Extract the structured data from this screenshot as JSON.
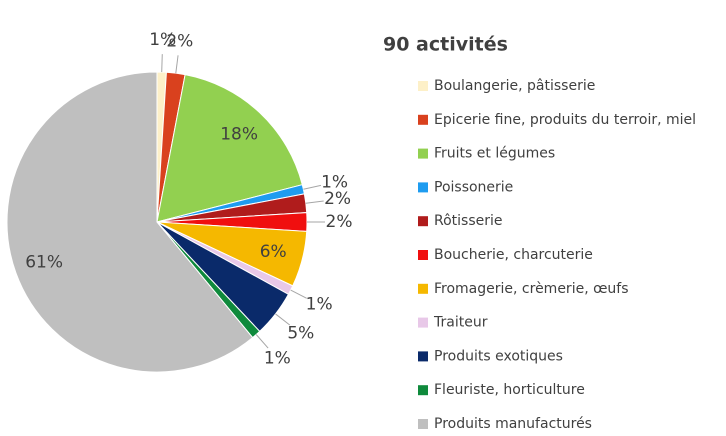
{
  "chart_data": {
    "type": "pie",
    "title": "90 activités",
    "categories": [
      "Boulangerie, pâtisserie",
      "Epicerie fine, produits du terroir, miel",
      "Fruits et légumes",
      "Poissonerie",
      "Rôtisserie",
      "Boucherie, charcuterie",
      "Fromagerie, crèmerie, œufs",
      "Traiteur",
      "Produits exotiques",
      "Fleuriste, horticulture",
      "Produits manufacturés"
    ],
    "values": [
      1,
      2,
      18,
      1,
      2,
      2,
      6,
      1,
      5,
      1,
      61
    ],
    "value_labels": [
      "1%",
      "2%",
      "18%",
      "1%",
      "2%",
      "2%",
      "6%",
      "1%",
      "5%",
      "1%",
      "61%"
    ],
    "colors": [
      "#fdf0c8",
      "#d9411e",
      "#92d050",
      "#1e9cf0",
      "#b01c1c",
      "#f00f0f",
      "#f5b800",
      "#e8c8e8",
      "#0a2a6a",
      "#0f8a3c",
      "#bfbfbf"
    ],
    "legend": "right"
  }
}
